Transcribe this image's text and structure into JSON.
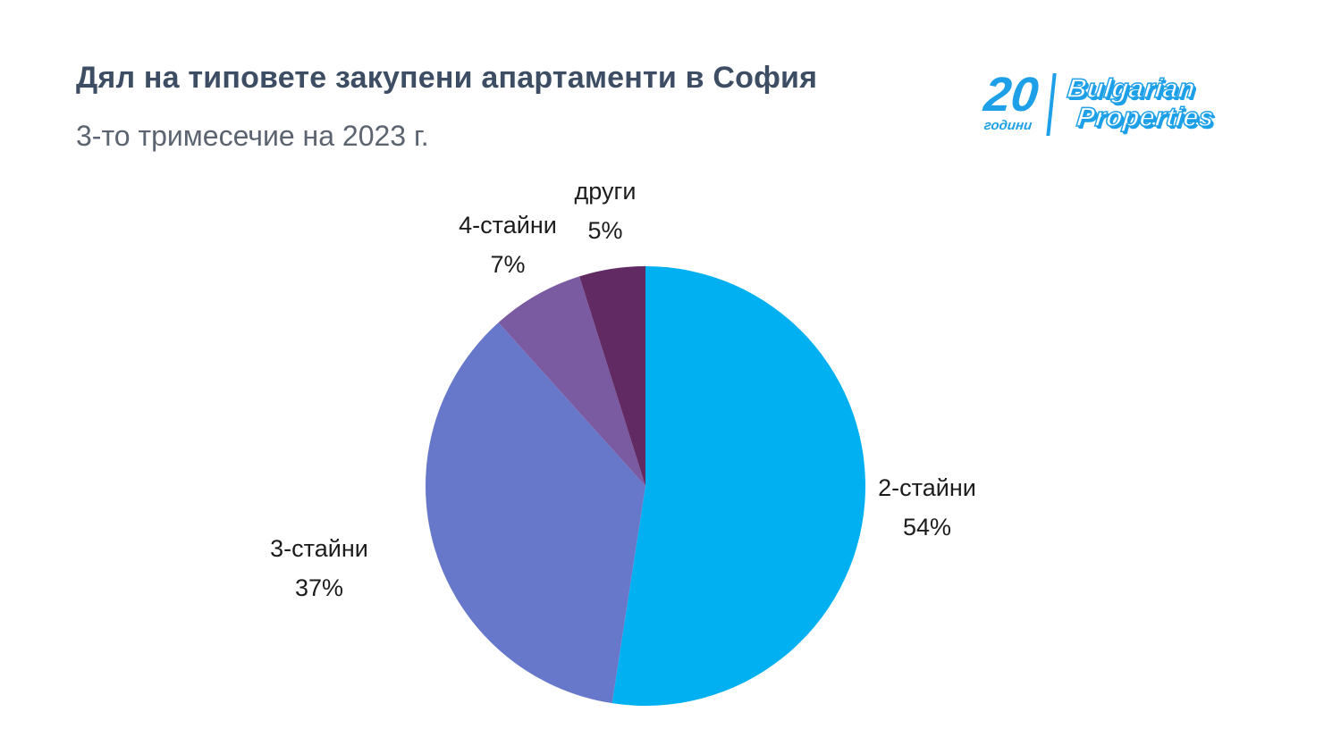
{
  "header": {
    "title": "Дял на типовете закупени апартаменти в София",
    "subtitle": "3-то тримесечие на 2023 г."
  },
  "logo": {
    "years_number": "20",
    "years_label": "години",
    "brand_line1": "Bulgarian",
    "brand_line2": "Properties",
    "brand_color": "#1da0e8"
  },
  "chart_data": {
    "type": "pie",
    "title": "Дял на типовете закупени апартаменти в София",
    "subtitle": "3-то тримесечие на 2023 г.",
    "start_angle_deg": -90,
    "direction": "clockwise",
    "legend_position": "none",
    "slices": [
      {
        "label": "2-стайни",
        "value": 54,
        "display": "54%",
        "color": "#00b0f0"
      },
      {
        "label": "3-стайни",
        "value": 37,
        "display": "37%",
        "color": "#6778ca"
      },
      {
        "label": "4-стайни",
        "value": 7,
        "display": "7%",
        "color": "#7a5aa0"
      },
      {
        "label": "други",
        "value": 5,
        "display": "5%",
        "color": "#622a63"
      }
    ]
  }
}
